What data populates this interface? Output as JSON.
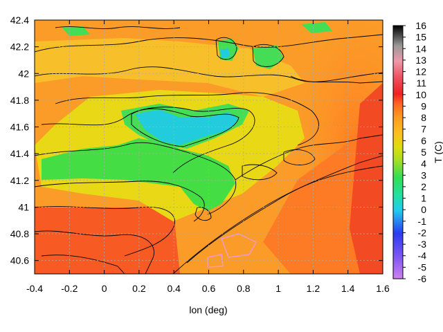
{
  "chart_data": {
    "type": "heatmap",
    "xlabel": "lon (deg)",
    "ylabel": "",
    "colorbar_label": "T (C)",
    "xlim": [
      -0.4,
      1.6
    ],
    "ylim": [
      40.5,
      42.4
    ],
    "x_ticks": [
      "-0.4",
      "-0.2",
      "0",
      "0.2",
      "0.4",
      "0.6",
      "0.8",
      "1",
      "1.2",
      "1.4",
      "1.6"
    ],
    "y_ticks": [
      "40.6",
      "40.8",
      "41",
      "41.2",
      "41.4",
      "41.6",
      "41.8",
      "42",
      "42.2",
      "42.4"
    ],
    "colorbar_range": [
      -6,
      16
    ],
    "colorbar_ticks": [
      "16",
      "15",
      "14",
      "13",
      "12",
      "11",
      "10",
      "9",
      "8",
      "7",
      "6",
      "5",
      "4",
      "3",
      "2",
      "1",
      "0",
      "-1",
      "-2",
      "-3",
      "-4",
      "-5",
      "-6"
    ],
    "grid": true,
    "contours": true,
    "colors": {
      "cold": "#cc77ee",
      "blue": "#2a3cf0",
      "cyan": "#22ccee",
      "green": "#33dd55",
      "yellow": "#dddd11",
      "orange": "#ff9922",
      "red": "#ee2222",
      "warm_pink": "#ee8899",
      "hot": "#000000"
    },
    "summary": "Surface temperature map; most values 6-9 C (orange), a cold valley band ~1-3 C (green) across lon 0.0-0.7 at lat 41.1-41.7, minimum near -1 C (cyan) around lon 0.5-0.7, lat 41.6; warmest ~9-10 C along the right/bottom-right edge."
  }
}
